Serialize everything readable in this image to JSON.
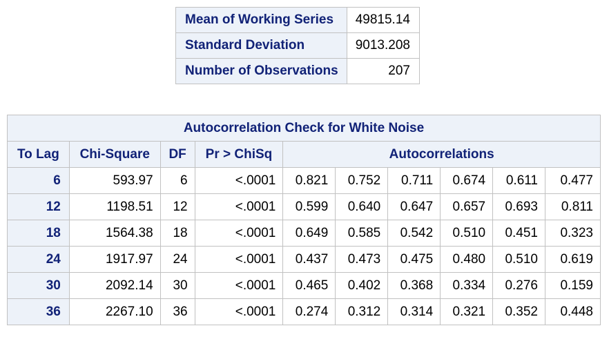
{
  "summary": {
    "rows": [
      {
        "label": "Mean of Working Series",
        "value": "49815.14"
      },
      {
        "label": "Standard Deviation",
        "value": "9013.208"
      },
      {
        "label": "Number of Observations",
        "value": "207"
      }
    ]
  },
  "acf": {
    "title": "Autocorrelation Check for White Noise",
    "headers": {
      "to_lag": "To Lag",
      "chi_square": "Chi-Square",
      "df": "DF",
      "pr": "Pr > ChiSq",
      "autocorr": "Autocorrelations"
    },
    "rows": [
      {
        "lag": "6",
        "chisq": "593.97",
        "df": "6",
        "p": "<.0001",
        "ac": [
          "0.821",
          "0.752",
          "0.711",
          "0.674",
          "0.611",
          "0.477"
        ]
      },
      {
        "lag": "12",
        "chisq": "1198.51",
        "df": "12",
        "p": "<.0001",
        "ac": [
          "0.599",
          "0.640",
          "0.647",
          "0.657",
          "0.693",
          "0.811"
        ]
      },
      {
        "lag": "18",
        "chisq": "1564.38",
        "df": "18",
        "p": "<.0001",
        "ac": [
          "0.649",
          "0.585",
          "0.542",
          "0.510",
          "0.451",
          "0.323"
        ]
      },
      {
        "lag": "24",
        "chisq": "1917.97",
        "df": "24",
        "p": "<.0001",
        "ac": [
          "0.437",
          "0.473",
          "0.475",
          "0.480",
          "0.510",
          "0.619"
        ]
      },
      {
        "lag": "30",
        "chisq": "2092.14",
        "df": "30",
        "p": "<.0001",
        "ac": [
          "0.465",
          "0.402",
          "0.368",
          "0.334",
          "0.276",
          "0.159"
        ]
      },
      {
        "lag": "36",
        "chisq": "2267.10",
        "df": "36",
        "p": "<.0001",
        "ac": [
          "0.274",
          "0.312",
          "0.314",
          "0.321",
          "0.352",
          "0.448"
        ]
      }
    ]
  }
}
